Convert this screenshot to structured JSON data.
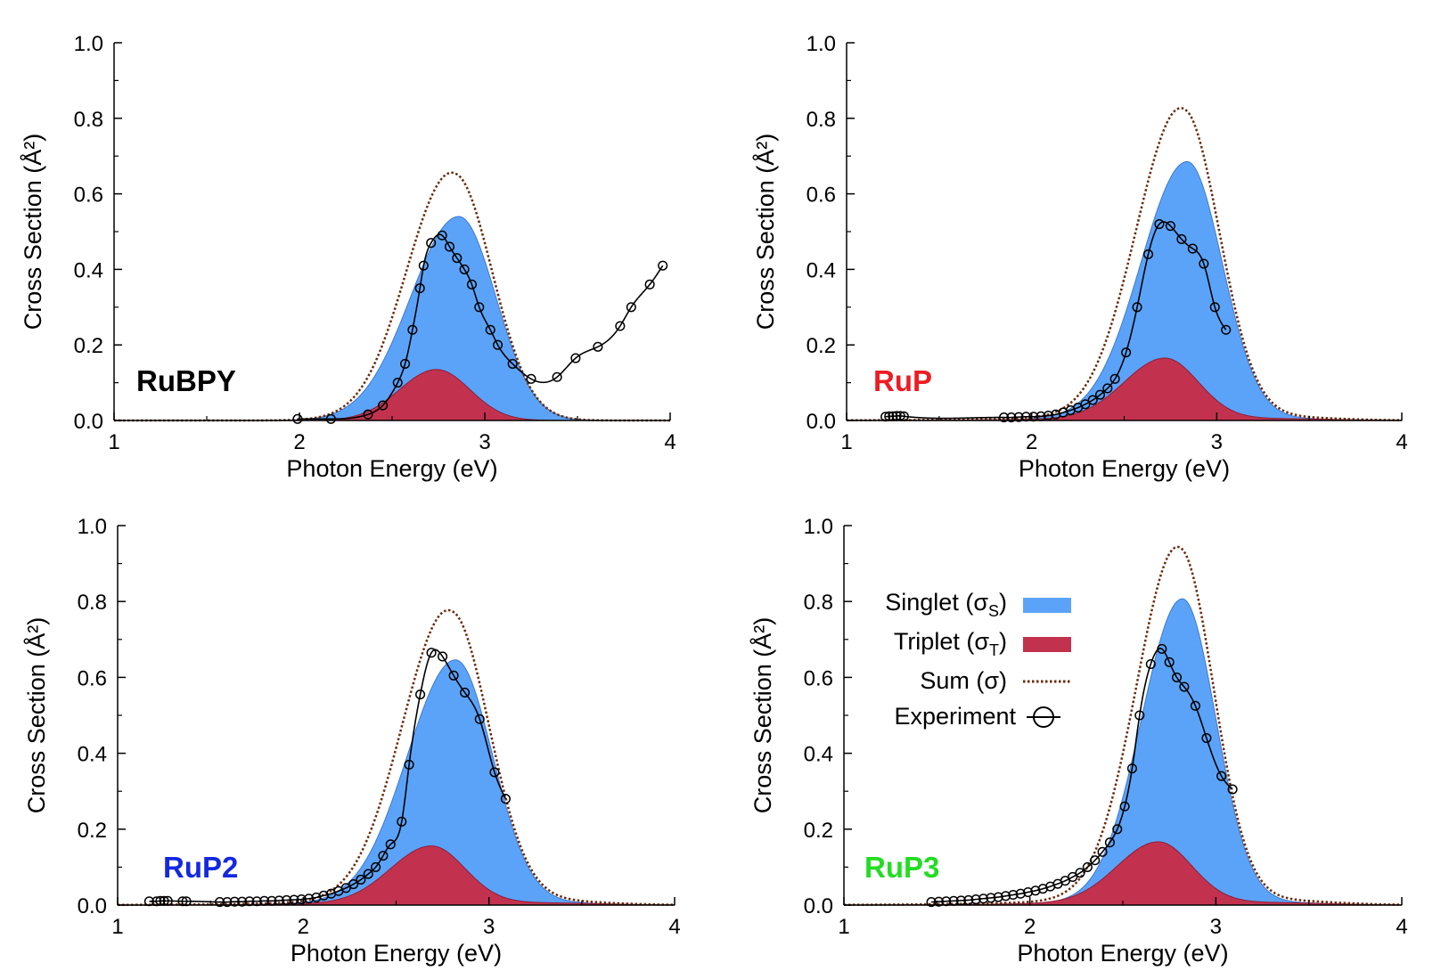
{
  "figure": {
    "legend": {
      "singlet": {
        "label": "Singlet (σ",
        "sub": "S",
        "tail": ")",
        "color": "#5BA3F8"
      },
      "triplet": {
        "label": "Triplet (σ",
        "sub": "T",
        "tail": ")",
        "color": "#C2324F"
      },
      "sum": {
        "label": "Sum (σ)",
        "color": "#6B2A0A"
      },
      "experiment": {
        "label": "Experiment"
      }
    }
  },
  "chart_data": [
    {
      "type": "area",
      "molecule": "RuBPY",
      "molecule_color": "#000000",
      "xlabel": "Photon Energy (eV)",
      "ylabel": "Cross Section (Å²)",
      "xlim": [
        1,
        4
      ],
      "ylim": [
        0,
        1.0
      ],
      "xticks": [
        "1",
        "2",
        "3",
        "4"
      ],
      "yticks": [
        "0.0",
        "0.2",
        "0.4",
        "0.6",
        "0.8",
        "1.0"
      ],
      "singlet": {
        "amp": 0.54,
        "center": 2.86,
        "wl": 0.26,
        "wr": 0.2
      },
      "triplet": {
        "amp": 0.135,
        "center": 2.74,
        "wl": 0.2,
        "wr": 0.18
      },
      "tail": 0.0,
      "experiment": [
        [
          1.99,
          0.004
        ],
        [
          2.17,
          0.004
        ],
        [
          2.37,
          0.016
        ],
        [
          2.45,
          0.04
        ],
        [
          2.53,
          0.1
        ],
        [
          2.57,
          0.15
        ],
        [
          2.61,
          0.24
        ],
        [
          2.65,
          0.35
        ],
        [
          2.67,
          0.41
        ],
        [
          2.71,
          0.47
        ],
        [
          2.77,
          0.49
        ],
        [
          2.81,
          0.46
        ],
        [
          2.85,
          0.43
        ],
        [
          2.89,
          0.4
        ],
        [
          2.93,
          0.36
        ],
        [
          2.97,
          0.3
        ],
        [
          3.03,
          0.24
        ],
        [
          3.07,
          0.2
        ],
        [
          3.15,
          0.15
        ],
        [
          3.25,
          0.11
        ],
        [
          3.39,
          0.115
        ],
        [
          3.49,
          0.165
        ],
        [
          3.61,
          0.195
        ],
        [
          3.73,
          0.25
        ],
        [
          3.79,
          0.3
        ],
        [
          3.89,
          0.36
        ],
        [
          3.96,
          0.41
        ]
      ]
    },
    {
      "type": "area",
      "molecule": "RuP",
      "molecule_color": "#ED1C24",
      "xlabel": "Photon Energy (eV)",
      "ylabel": "Cross Section (Å²)",
      "xlim": [
        1,
        4
      ],
      "ylim": [
        0,
        1.0
      ],
      "xticks": [
        "1",
        "2",
        "3",
        "4"
      ],
      "yticks": [
        "0.0",
        "0.2",
        "0.4",
        "0.6",
        "0.8",
        "1.0"
      ],
      "singlet": {
        "amp": 0.68,
        "center": 2.84,
        "wl": 0.25,
        "wr": 0.19
      },
      "triplet": {
        "amp": 0.16,
        "center": 2.72,
        "wl": 0.22,
        "wr": 0.18
      },
      "tail": 0.006,
      "experiment": [
        [
          1.21,
          0.01
        ],
        [
          1.23,
          0.011
        ],
        [
          1.25,
          0.011
        ],
        [
          1.27,
          0.012
        ],
        [
          1.29,
          0.012
        ],
        [
          1.31,
          0.011
        ],
        [
          1.85,
          0.008
        ],
        [
          1.89,
          0.008
        ],
        [
          1.93,
          0.009
        ],
        [
          1.97,
          0.01
        ],
        [
          2.01,
          0.01
        ],
        [
          2.05,
          0.011
        ],
        [
          2.09,
          0.013
        ],
        [
          2.13,
          0.016
        ],
        [
          2.17,
          0.021
        ],
        [
          2.21,
          0.027
        ],
        [
          2.25,
          0.034
        ],
        [
          2.29,
          0.043
        ],
        [
          2.33,
          0.054
        ],
        [
          2.37,
          0.068
        ],
        [
          2.41,
          0.085
        ],
        [
          2.45,
          0.11
        ],
        [
          2.51,
          0.18
        ],
        [
          2.57,
          0.3
        ],
        [
          2.63,
          0.44
        ],
        [
          2.69,
          0.52
        ],
        [
          2.75,
          0.515
        ],
        [
          2.81,
          0.48
        ],
        [
          2.87,
          0.455
        ],
        [
          2.93,
          0.415
        ],
        [
          2.99,
          0.3
        ],
        [
          3.05,
          0.24
        ]
      ]
    },
    {
      "type": "area",
      "molecule": "RuP2",
      "molecule_color": "#1428E0",
      "xlabel": "Photon Energy (eV)",
      "ylabel": "Cross Section (Å²)",
      "xlim": [
        1,
        4
      ],
      "ylim": [
        0,
        1.0
      ],
      "xticks": [
        "1",
        "2",
        "3",
        "4"
      ],
      "yticks": [
        "0.0",
        "0.2",
        "0.4",
        "0.6",
        "0.8",
        "1.0"
      ],
      "singlet": {
        "amp": 0.64,
        "center": 2.82,
        "wl": 0.26,
        "wr": 0.2
      },
      "triplet": {
        "amp": 0.15,
        "center": 2.69,
        "wl": 0.22,
        "wr": 0.18
      },
      "tail": 0.007,
      "experiment": [
        [
          1.17,
          0.01
        ],
        [
          1.21,
          0.01
        ],
        [
          1.23,
          0.011
        ],
        [
          1.25,
          0.011
        ],
        [
          1.27,
          0.011
        ],
        [
          1.35,
          0.01
        ],
        [
          1.37,
          0.01
        ],
        [
          1.55,
          0.008
        ],
        [
          1.59,
          0.008
        ],
        [
          1.63,
          0.009
        ],
        [
          1.67,
          0.009
        ],
        [
          1.71,
          0.01
        ],
        [
          1.75,
          0.01
        ],
        [
          1.79,
          0.011
        ],
        [
          1.83,
          0.011
        ],
        [
          1.87,
          0.012
        ],
        [
          1.91,
          0.013
        ],
        [
          1.95,
          0.014
        ],
        [
          1.99,
          0.015
        ],
        [
          2.03,
          0.017
        ],
        [
          2.07,
          0.02
        ],
        [
          2.11,
          0.025
        ],
        [
          2.15,
          0.03
        ],
        [
          2.19,
          0.037
        ],
        [
          2.23,
          0.045
        ],
        [
          2.27,
          0.055
        ],
        [
          2.31,
          0.067
        ],
        [
          2.35,
          0.082
        ],
        [
          2.39,
          0.1
        ],
        [
          2.43,
          0.13
        ],
        [
          2.47,
          0.16
        ],
        [
          2.53,
          0.22
        ],
        [
          2.57,
          0.37
        ],
        [
          2.63,
          0.555
        ],
        [
          2.69,
          0.665
        ],
        [
          2.75,
          0.655
        ],
        [
          2.81,
          0.605
        ],
        [
          2.87,
          0.56
        ],
        [
          2.95,
          0.49
        ],
        [
          3.03,
          0.35
        ],
        [
          3.09,
          0.28
        ]
      ]
    },
    {
      "type": "area",
      "molecule": "RuP3",
      "molecule_color": "#22DD22",
      "xlabel": "Photon Energy (eV)",
      "ylabel": "Cross Section (Å²)",
      "xlim": [
        1,
        4
      ],
      "ylim": [
        0,
        1.0
      ],
      "xticks": [
        "1",
        "2",
        "3",
        "4"
      ],
      "yticks": [
        "0.0",
        "0.2",
        "0.4",
        "0.6",
        "0.8",
        "1.0"
      ],
      "singlet": {
        "amp": 0.8,
        "center": 2.82,
        "wl": 0.22,
        "wr": 0.18
      },
      "triplet": {
        "amp": 0.16,
        "center": 2.69,
        "wl": 0.22,
        "wr": 0.18
      },
      "tail": 0.008,
      "experiment": [
        [
          1.47,
          0.008
        ],
        [
          1.51,
          0.009
        ],
        [
          1.55,
          0.01
        ],
        [
          1.59,
          0.011
        ],
        [
          1.63,
          0.012
        ],
        [
          1.67,
          0.013
        ],
        [
          1.71,
          0.015
        ],
        [
          1.75,
          0.017
        ],
        [
          1.79,
          0.019
        ],
        [
          1.83,
          0.021
        ],
        [
          1.87,
          0.024
        ],
        [
          1.91,
          0.027
        ],
        [
          1.95,
          0.03
        ],
        [
          1.99,
          0.034
        ],
        [
          2.03,
          0.038
        ],
        [
          2.07,
          0.043
        ],
        [
          2.11,
          0.049
        ],
        [
          2.15,
          0.056
        ],
        [
          2.19,
          0.064
        ],
        [
          2.23,
          0.074
        ],
        [
          2.27,
          0.085
        ],
        [
          2.31,
          0.1
        ],
        [
          2.35,
          0.118
        ],
        [
          2.39,
          0.14
        ],
        [
          2.43,
          0.165
        ],
        [
          2.47,
          0.2
        ],
        [
          2.51,
          0.26
        ],
        [
          2.55,
          0.36
        ],
        [
          2.59,
          0.5
        ],
        [
          2.65,
          0.635
        ],
        [
          2.71,
          0.675
        ],
        [
          2.75,
          0.64
        ],
        [
          2.79,
          0.6
        ],
        [
          2.83,
          0.575
        ],
        [
          2.89,
          0.525
        ],
        [
          2.95,
          0.44
        ],
        [
          3.03,
          0.34
        ],
        [
          3.09,
          0.305
        ]
      ]
    }
  ]
}
